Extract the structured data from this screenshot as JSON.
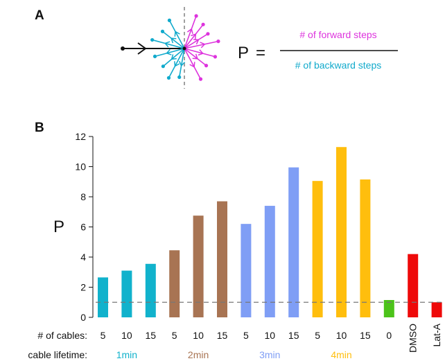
{
  "panel_a": {
    "letter": "A",
    "lhs": "P",
    "equals": "=",
    "numerator": "# of forward steps",
    "denominator": "# of backward steps",
    "colors": {
      "forward": "#dd33dd",
      "backward": "#11aacc",
      "trail": "#111111",
      "divider": "#888888"
    }
  },
  "panel_b": {
    "letter": "B",
    "row_labels": {
      "cables": "# of cables:",
      "lifetime": "cable lifetime:"
    },
    "lifetime_groups": [
      {
        "label": "1min",
        "color": "#11b2cc"
      },
      {
        "label": "2min",
        "color": "#a87453"
      },
      {
        "label": "3min",
        "color": "#7f9ef5"
      },
      {
        "label": "4min",
        "color": "#ffbe0d"
      }
    ]
  },
  "chart_data": {
    "type": "bar",
    "ylabel": "P",
    "ylim": [
      0,
      12
    ],
    "yticks": [
      0,
      2,
      4,
      6,
      8,
      10,
      12
    ],
    "reference_line": 1,
    "categories": [
      "5",
      "10",
      "15",
      "5",
      "10",
      "15",
      "5",
      "10",
      "15",
      "5",
      "10",
      "15",
      "0",
      "DMSO",
      "Lat-A"
    ],
    "groups": [
      "1min",
      "1min",
      "1min",
      "2min",
      "2min",
      "2min",
      "3min",
      "3min",
      "3min",
      "4min",
      "4min",
      "4min",
      "",
      "",
      ""
    ],
    "values": [
      2.65,
      3.1,
      3.55,
      4.45,
      6.75,
      7.7,
      6.2,
      7.4,
      9.95,
      9.05,
      11.3,
      9.15,
      1.15,
      4.2,
      1.0
    ],
    "colors": [
      "#11b2cc",
      "#11b2cc",
      "#11b2cc",
      "#a87453",
      "#a87453",
      "#a87453",
      "#7f9ef5",
      "#7f9ef5",
      "#7f9ef5",
      "#ffbe0d",
      "#ffbe0d",
      "#ffbe0d",
      "#4cc31a",
      "#ee0a0a",
      "#ee0a0a"
    ],
    "grid": false,
    "legend": "none"
  }
}
